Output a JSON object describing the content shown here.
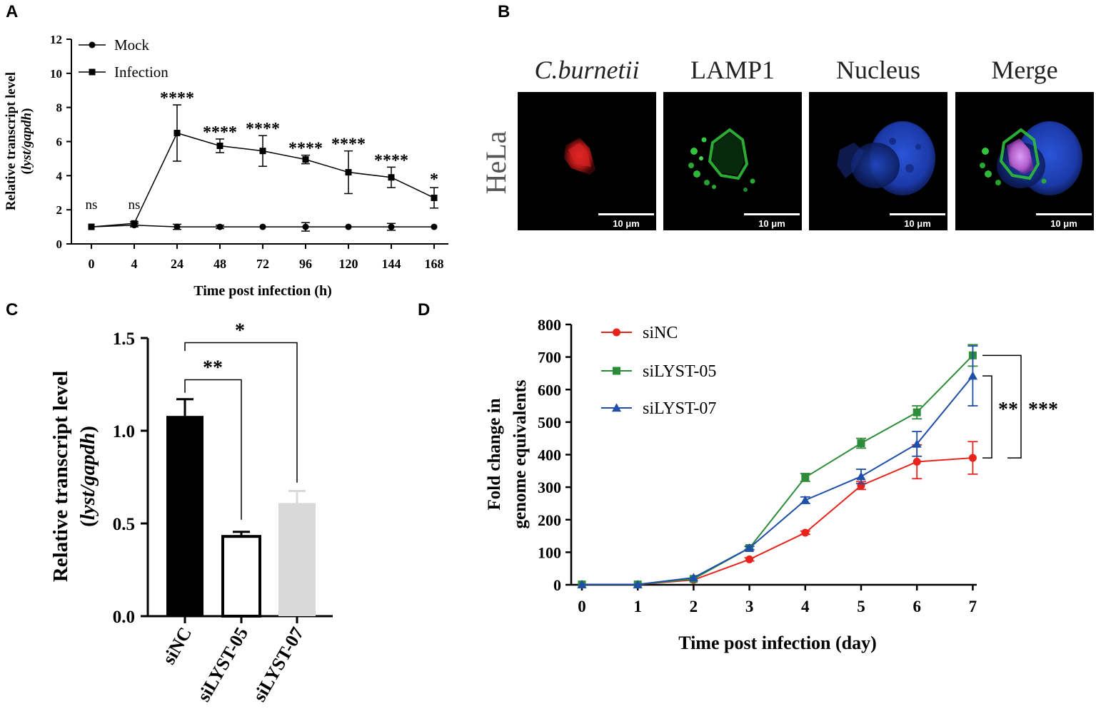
{
  "panels": [
    {
      "letter": "A",
      "chart_data": {
        "type": "line",
        "x": [
          "0",
          "4",
          "24",
          "48",
          "72",
          "96",
          "120",
          "144",
          "168"
        ],
        "xlabel": "Time post infection (h)",
        "ylabel": "Relative transcript level",
        "ylabel_sub_prefix": "(",
        "ylabel_sub_italic": "lyst/gapdh",
        "ylabel_sub_suffix": ")",
        "ylim": [
          0,
          12
        ],
        "yticks": [
          "0",
          "2",
          "4",
          "6",
          "8",
          "10",
          "12"
        ],
        "grid": false,
        "legend_position": "top-left",
        "series": [
          {
            "name": "Mock",
            "marker": "circle",
            "values": [
              1.0,
              1.1,
              1.0,
              1.0,
              1.0,
              1.0,
              1.0,
              1.0,
              1.0
            ],
            "errors": [
              0.05,
              0.1,
              0.15,
              0.1,
              0.05,
              0.25,
              0.05,
              0.2,
              0.05
            ]
          },
          {
            "name": "Infection",
            "marker": "square",
            "values": [
              1.0,
              1.2,
              6.5,
              5.75,
              5.45,
              4.95,
              4.2,
              3.9,
              2.7
            ],
            "errors": [
              0.05,
              0.1,
              1.65,
              0.4,
              0.9,
              0.25,
              1.25,
              0.6,
              0.6
            ]
          }
        ],
        "significance": [
          "ns",
          "ns",
          "****",
          "****",
          "****",
          "****",
          "****",
          "****",
          "*"
        ]
      }
    },
    {
      "letter": "B",
      "row_label": "HeLa",
      "columns": [
        {
          "label": "C.burnetii",
          "italic": true,
          "scalebar": "10 μm"
        },
        {
          "label": "LAMP1",
          "italic": false,
          "scalebar": "10 μm"
        },
        {
          "label": "Nucleus",
          "italic": false,
          "scalebar": "10 μm"
        },
        {
          "label": "Merge",
          "italic": false,
          "scalebar": "10 μm"
        }
      ]
    },
    {
      "letter": "C",
      "chart_data": {
        "type": "bar",
        "categories": [
          "siNC",
          "siLYST-05",
          "siLYST-07"
        ],
        "values": [
          1.08,
          0.43,
          0.61
        ],
        "errors": [
          0.09,
          0.025,
          0.065
        ],
        "colors": [
          "#000000",
          "#ffffff",
          "#d9d9d9"
        ],
        "ylabel": "Relative transcript level",
        "ylabel_sub_prefix": "(",
        "ylabel_sub_italic": "lyst/gapdh",
        "ylabel_sub_suffix": ")",
        "ylim": [
          0,
          1.5
        ],
        "yticks": [
          "0.0",
          "0.5",
          "1.0",
          "1.5"
        ],
        "grid": false,
        "comparisons": [
          {
            "from": "siNC",
            "to": "siLYST-05",
            "label": "**"
          },
          {
            "from": "siNC",
            "to": "siLYST-07",
            "label": "*"
          }
        ]
      }
    },
    {
      "letter": "D",
      "chart_data": {
        "type": "line",
        "x": [
          0,
          1,
          2,
          3,
          4,
          5,
          6,
          7
        ],
        "xticks": [
          "0",
          "1",
          "2",
          "3",
          "4",
          "5",
          "6",
          "7"
        ],
        "xlabel": "Time post infection (day)",
        "ylabel_line1": "Fold change in",
        "ylabel_line2": "genome equivalents",
        "ylim": [
          0,
          800
        ],
        "yticks": [
          "0",
          "100",
          "200",
          "300",
          "400",
          "500",
          "600",
          "700",
          "800"
        ],
        "grid": false,
        "legend_position": "top-left",
        "series": [
          {
            "name": "siNC",
            "color": "#e8231c",
            "marker": "circle",
            "values": [
              1,
              1,
              15,
              78,
              160,
              305,
              378,
              390
            ],
            "errors": [
              0,
              0,
              3,
              5,
              5,
              12,
              52,
              50
            ]
          },
          {
            "name": "siLYST-05",
            "color": "#2e8b3a",
            "marker": "square",
            "values": [
              1,
              1,
              18,
              113,
              330,
              435,
              530,
              705
            ],
            "errors": [
              0,
              0,
              3,
              5,
              12,
              15,
              20,
              33
            ]
          },
          {
            "name": "siLYST-07",
            "color": "#1f4fa8",
            "marker": "triangle",
            "values": [
              1,
              1,
              22,
              113,
              260,
              333,
              433,
              642
            ],
            "errors": [
              0,
              0,
              3,
              5,
              10,
              22,
              38,
              92
            ]
          }
        ],
        "comparisons": [
          {
            "label": "**"
          },
          {
            "label": "***"
          }
        ]
      }
    }
  ]
}
